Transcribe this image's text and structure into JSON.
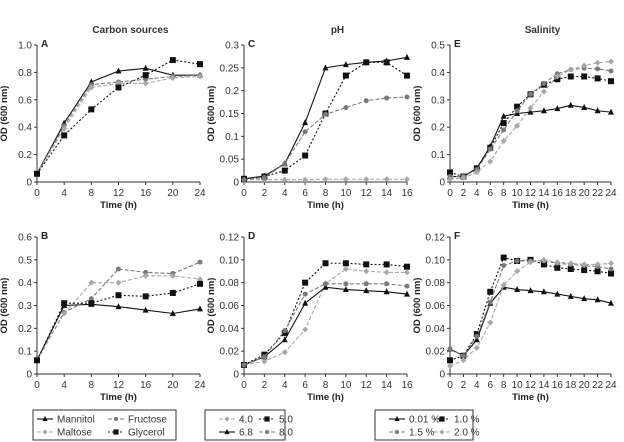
{
  "chart_data": [
    {
      "id": "A",
      "type": "line",
      "title": "Carbon sources",
      "panel_label": "A",
      "xlabel": "Time (h)",
      "ylabel": "OD (600 nm)",
      "x": [
        0,
        4,
        8,
        12,
        16,
        20,
        24
      ],
      "xticks": [
        0,
        4,
        8,
        12,
        16,
        20,
        24
      ],
      "xlim": [
        0,
        24
      ],
      "ylim": [
        0,
        1.0
      ],
      "yticks": [
        0,
        0.2,
        0.4,
        0.6,
        0.8,
        1.0
      ],
      "ytick_labels": [
        "0",
        "0.2",
        "0.4",
        "0.6",
        "0.8",
        "1.0"
      ],
      "series": [
        {
          "name": "Mannitol",
          "style": "mannitol",
          "values": [
            0.06,
            0.43,
            0.73,
            0.81,
            0.83,
            0.78,
            0.78
          ]
        },
        {
          "name": "Fructose",
          "style": "fructose",
          "values": [
            0.06,
            0.41,
            0.71,
            0.73,
            0.75,
            0.77,
            0.78
          ]
        },
        {
          "name": "Maltose",
          "style": "maltose",
          "values": [
            0.06,
            0.39,
            0.69,
            0.72,
            0.72,
            0.76,
            0.77
          ]
        },
        {
          "name": "Glycerol",
          "style": "glycerol",
          "values": [
            0.06,
            0.34,
            0.53,
            0.69,
            0.78,
            0.89,
            0.86
          ]
        }
      ]
    },
    {
      "id": "C",
      "type": "line",
      "title": "pH",
      "panel_label": "C",
      "xlabel": "Time (h)",
      "ylabel": "OD (600 nm)",
      "x": [
        0,
        2,
        4,
        6,
        8,
        10,
        12,
        14,
        16
      ],
      "xticks": [
        0,
        2,
        4,
        6,
        8,
        10,
        12,
        14,
        16
      ],
      "xlim": [
        0,
        16
      ],
      "ylim": [
        0,
        0.3
      ],
      "yticks": [
        0,
        0.05,
        0.1,
        0.15,
        0.2,
        0.25,
        0.3
      ],
      "ytick_labels": [
        "0",
        "0.05",
        "0.1",
        "0.15",
        "0.2",
        "0.25",
        "0.3"
      ],
      "series": [
        {
          "name": "4.0",
          "style": "gray-diamond",
          "values": [
            0.005,
            0.005,
            0.005,
            0.005,
            0.006,
            0.006,
            0.006,
            0.006,
            0.006
          ]
        },
        {
          "name": "5.0",
          "style": "black-square",
          "values": [
            0.007,
            0.012,
            0.025,
            0.058,
            0.15,
            0.233,
            0.262,
            0.262,
            0.233
          ]
        },
        {
          "name": "6.8",
          "style": "black-triangle",
          "values": [
            0.007,
            0.013,
            0.04,
            0.13,
            0.25,
            0.257,
            0.262,
            0.265,
            0.273
          ]
        },
        {
          "name": "8.0",
          "style": "gray-circle",
          "values": [
            0.005,
            0.01,
            0.04,
            0.11,
            0.148,
            0.163,
            0.178,
            0.184,
            0.186
          ]
        }
      ]
    },
    {
      "id": "E",
      "type": "line",
      "title": "Salinity",
      "panel_label": "E",
      "xlabel": "Time (h)",
      "ylabel": "OD (600 nm)",
      "x": [
        0,
        2,
        4,
        6,
        8,
        10,
        12,
        14,
        16,
        18,
        20,
        22,
        24
      ],
      "xticks": [
        0,
        2,
        4,
        6,
        8,
        10,
        12,
        14,
        16,
        18,
        20,
        22,
        24
      ],
      "xlim": [
        0,
        24
      ],
      "ylim": [
        0,
        0.5
      ],
      "yticks": [
        0,
        0.1,
        0.2,
        0.3,
        0.4,
        0.5
      ],
      "ytick_labels": [
        "0",
        "0.1",
        "0.2",
        "0.3",
        "0.4",
        "0.5"
      ],
      "series": [
        {
          "name": "0.01 %",
          "style": "black-triangle",
          "values": [
            0.02,
            0.02,
            0.05,
            0.13,
            0.24,
            0.25,
            0.255,
            0.26,
            0.268,
            0.28,
            0.272,
            0.26,
            0.255
          ]
        },
        {
          "name": "1.0 %",
          "style": "black-square",
          "values": [
            0.035,
            0.02,
            0.05,
            0.125,
            0.215,
            0.275,
            0.32,
            0.355,
            0.375,
            0.385,
            0.385,
            0.378,
            0.368
          ]
        },
        {
          "name": "1.5 %",
          "style": "gray-circle",
          "values": [
            0.02,
            0.02,
            0.045,
            0.12,
            0.19,
            0.26,
            0.32,
            0.36,
            0.395,
            0.41,
            0.415,
            0.413,
            0.405
          ]
        },
        {
          "name": "2.0 %",
          "style": "gray-diamond",
          "values": [
            0.01,
            0.015,
            0.035,
            0.075,
            0.15,
            0.205,
            0.27,
            0.33,
            0.385,
            0.41,
            0.425,
            0.435,
            0.44
          ]
        }
      ]
    },
    {
      "id": "B",
      "type": "line",
      "title": "",
      "panel_label": "B",
      "xlabel": "Time (h)",
      "ylabel": "OD (600 nm)",
      "x": [
        0,
        4,
        8,
        12,
        16,
        20,
        24
      ],
      "xticks": [
        0,
        4,
        8,
        12,
        16,
        20,
        24
      ],
      "xlim": [
        0,
        24
      ],
      "ylim": [
        0,
        0.6
      ],
      "yticks": [
        0,
        0.1,
        0.2,
        0.3,
        0.4,
        0.5,
        0.6
      ],
      "ytick_labels": [
        "0",
        "0.1",
        "0.2",
        "0.3",
        "0.4",
        "0.5",
        "0.6"
      ],
      "series": [
        {
          "name": "Mannitol",
          "style": "mannitol",
          "values": [
            0.06,
            0.3,
            0.305,
            0.295,
            0.28,
            0.265,
            0.285
          ]
        },
        {
          "name": "Fructose",
          "style": "fructose",
          "values": [
            0.06,
            0.27,
            0.33,
            0.46,
            0.445,
            0.44,
            0.49
          ]
        },
        {
          "name": "Maltose",
          "style": "maltose",
          "values": [
            0.06,
            0.265,
            0.4,
            0.4,
            0.43,
            0.43,
            0.415
          ]
        },
        {
          "name": "Glycerol",
          "style": "glycerol",
          "values": [
            0.06,
            0.31,
            0.31,
            0.345,
            0.34,
            0.355,
            0.395
          ]
        }
      ]
    },
    {
      "id": "D",
      "type": "line",
      "title": "",
      "panel_label": "D",
      "xlabel": "Time (h)",
      "ylabel": "OD (600 nm)",
      "x": [
        0,
        2,
        4,
        6,
        8,
        10,
        12,
        14,
        16
      ],
      "xticks": [
        0,
        2,
        4,
        6,
        8,
        10,
        12,
        14,
        16
      ],
      "xlim": [
        0,
        16
      ],
      "ylim": [
        0,
        0.12
      ],
      "yticks": [
        0,
        0.02,
        0.04,
        0.06,
        0.08,
        0.1,
        0.12
      ],
      "ytick_labels": [
        "0",
        "0.02",
        "0.04",
        "0.06",
        "0.08",
        "0.10",
        "0.12"
      ],
      "series": [
        {
          "name": "4.0",
          "style": "gray-diamond",
          "values": [
            0.008,
            0.011,
            0.019,
            0.039,
            0.079,
            0.092,
            0.09,
            0.089,
            0.089
          ]
        },
        {
          "name": "5.0",
          "style": "black-square",
          "values": [
            0.008,
            0.017,
            0.036,
            0.08,
            0.097,
            0.097,
            0.096,
            0.096,
            0.094
          ]
        },
        {
          "name": "6.8",
          "style": "black-triangle",
          "values": [
            0.008,
            0.015,
            0.03,
            0.062,
            0.076,
            0.074,
            0.073,
            0.072,
            0.07
          ]
        },
        {
          "name": "8.0",
          "style": "gray-circle",
          "values": [
            0.008,
            0.015,
            0.038,
            0.07,
            0.079,
            0.079,
            0.079,
            0.079,
            0.077
          ]
        }
      ]
    },
    {
      "id": "F",
      "type": "line",
      "title": "",
      "panel_label": "F",
      "xlabel": "Time (h)",
      "ylabel": "OD (600 nm)",
      "x": [
        0,
        2,
        4,
        6,
        8,
        10,
        12,
        14,
        16,
        18,
        20,
        22,
        24
      ],
      "xticks": [
        0,
        2,
        4,
        6,
        8,
        10,
        12,
        14,
        16,
        18,
        20,
        22,
        24
      ],
      "xlim": [
        0,
        24
      ],
      "ylim": [
        0,
        0.12
      ],
      "yticks": [
        0,
        0.02,
        0.04,
        0.06,
        0.08,
        0.1,
        0.12
      ],
      "ytick_labels": [
        "0",
        "0.02",
        "0.04",
        "0.06",
        "0.08",
        "0.10",
        "0.12"
      ],
      "series": [
        {
          "name": "0.01 %",
          "style": "black-triangle",
          "values": [
            0.022,
            0.016,
            0.03,
            0.062,
            0.076,
            0.074,
            0.073,
            0.072,
            0.07,
            0.068,
            0.066,
            0.065,
            0.062
          ]
        },
        {
          "name": "1.0 %",
          "style": "black-square",
          "values": [
            0.012,
            0.016,
            0.035,
            0.072,
            0.102,
            0.099,
            0.1,
            0.096,
            0.093,
            0.092,
            0.091,
            0.09,
            0.088
          ]
        },
        {
          "name": "1.5 %",
          "style": "gray-circle",
          "values": [
            0.022,
            0.016,
            0.033,
            0.063,
            0.095,
            0.099,
            0.099,
            0.099,
            0.097,
            0.096,
            0.095,
            0.094,
            0.092
          ]
        },
        {
          "name": "2.0 %",
          "style": "gray-diamond",
          "values": [
            0.007,
            0.012,
            0.023,
            0.045,
            0.078,
            0.09,
            0.098,
            0.1,
            0.098,
            0.097,
            0.096,
            0.096,
            0.097
          ]
        }
      ]
    }
  ],
  "legends": [
    {
      "id": "carbon",
      "entries": [
        {
          "name": "Mannitol",
          "style": "mannitol"
        },
        {
          "name": "Fructose",
          "style": "fructose"
        },
        {
          "name": "Maltose",
          "style": "maltose"
        },
        {
          "name": "Glycerol",
          "style": "glycerol"
        }
      ]
    },
    {
      "id": "ph",
      "entries": [
        {
          "name": "4.0",
          "style": "gray-diamond"
        },
        {
          "name": "5.0",
          "style": "black-square"
        },
        {
          "name": "6.8",
          "style": "black-triangle"
        },
        {
          "name": "8.0",
          "style": "gray-circle"
        }
      ]
    },
    {
      "id": "salinity",
      "entries": [
        {
          "name": "0.01 %",
          "style": "black-triangle"
        },
        {
          "name": "1.0 %",
          "style": "black-square"
        },
        {
          "name": "1.5 %",
          "style": "gray-circle"
        },
        {
          "name": "2.0 %",
          "style": "gray-diamond"
        }
      ]
    }
  ],
  "styles": {
    "mannitol": {
      "color": "#111111",
      "marker": "triangle",
      "dash": ""
    },
    "fructose": {
      "color": "#7a7a7a",
      "marker": "circle",
      "dash": "4,2"
    },
    "maltose": {
      "color": "#a8a8a8",
      "marker": "diamond",
      "dash": "4,2"
    },
    "glycerol": {
      "color": "#111111",
      "marker": "square",
      "dash": "2,2"
    },
    "black-triangle": {
      "color": "#111111",
      "marker": "triangle",
      "dash": ""
    },
    "black-square": {
      "color": "#111111",
      "marker": "square",
      "dash": "2,2"
    },
    "gray-circle": {
      "color": "#7a7a7a",
      "marker": "circle",
      "dash": "4,2"
    },
    "gray-diamond": {
      "color": "#a8a8a8",
      "marker": "diamond",
      "dash": "4,2"
    }
  }
}
